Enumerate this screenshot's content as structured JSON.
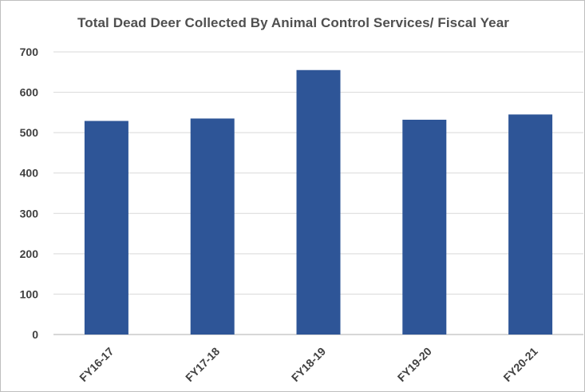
{
  "chart_data": {
    "type": "bar",
    "title": "Total Dead Deer Collected By Animal Control Services/ Fiscal Year",
    "categories": [
      "FY16-17",
      "FY17-18",
      "FY18-19",
      "FY19-20",
      "FY20-21"
    ],
    "values": [
      529,
      535,
      655,
      532,
      545
    ],
    "xlabel": "",
    "ylabel": "",
    "ylim": [
      0,
      700
    ],
    "yticks": [
      0,
      100,
      200,
      300,
      400,
      500,
      600,
      700
    ],
    "grid": true,
    "legend": "none",
    "bar_color": "#2e5597"
  }
}
